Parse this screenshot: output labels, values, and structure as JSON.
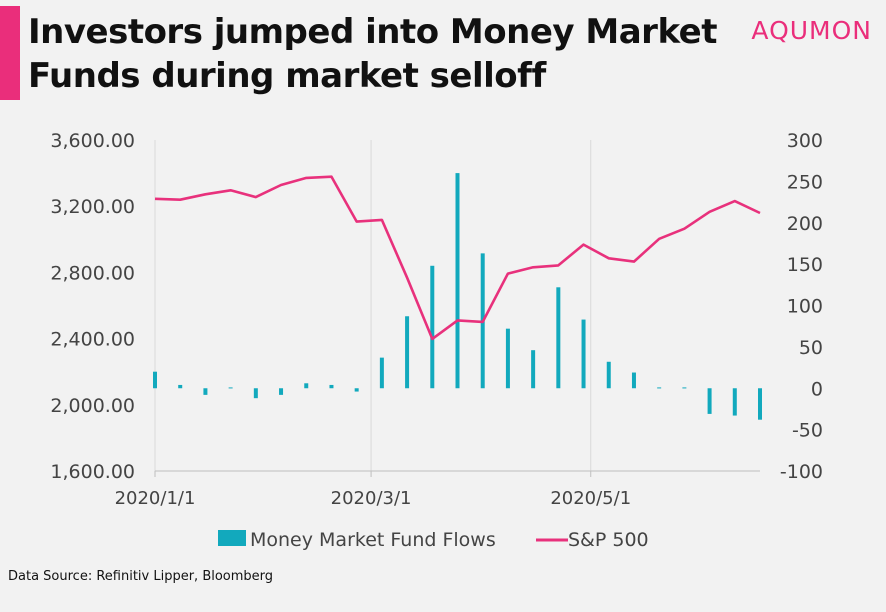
{
  "header": {
    "title_line1": "Investors jumped into Money Market",
    "title_line2": "Funds during market selloff",
    "brand": "AQUMON",
    "accent_color": "#ea2e7b"
  },
  "footer": {
    "source": "Data Source: Refinitiv Lipper, Bloomberg"
  },
  "chart_data": {
    "type": "bar+line",
    "x_tick_labels": [
      "2020/1/1",
      "2020/3/1",
      "2020/5/1"
    ],
    "x": [
      "2020-01-01",
      "2020-01-08",
      "2020-01-15",
      "2020-01-22",
      "2020-01-29",
      "2020-02-05",
      "2020-02-12",
      "2020-02-19",
      "2020-02-26",
      "2020-03-04",
      "2020-03-11",
      "2020-03-18",
      "2020-03-25",
      "2020-04-01",
      "2020-04-08",
      "2020-04-15",
      "2020-04-22",
      "2020-04-29",
      "2020-05-06",
      "2020-05-13",
      "2020-05-20",
      "2020-05-27",
      "2020-06-03",
      "2020-06-10",
      "2020-06-17"
    ],
    "series": [
      {
        "name": "Money Market Fund Flows",
        "type": "bar",
        "axis": "right",
        "color": "#12a9bd",
        "values": [
          20,
          4,
          -8,
          1,
          -12,
          -8,
          6,
          4,
          -4,
          37,
          87,
          148,
          260,
          163,
          72,
          46,
          122,
          83,
          32,
          19,
          1,
          1,
          -31,
          -33,
          -38
        ]
      },
      {
        "name": "S&P 500",
        "type": "line",
        "axis": "left",
        "color": "#e8317c",
        "values": [
          3245,
          3239,
          3272,
          3296,
          3255,
          3328,
          3371,
          3378,
          3107,
          3117,
          2768,
          2398,
          2510,
          2501,
          2793,
          2831,
          2842,
          2968,
          2885,
          2865,
          3003,
          3064,
          3166,
          3231,
          3159
        ]
      }
    ],
    "y_left": {
      "min": 1600,
      "max": 3600,
      "ticks": [
        "1,600.00",
        "2,000.00",
        "2,400.00",
        "2,800.00",
        "3,200.00",
        "3,600.00"
      ]
    },
    "y_right": {
      "min": -100,
      "max": 300,
      "ticks": [
        "-100",
        "-50",
        "0",
        "50",
        "100",
        "150",
        "200",
        "250",
        "300"
      ]
    },
    "grid": "vertical at x tick labels",
    "legend_placement": "bottom-center"
  }
}
